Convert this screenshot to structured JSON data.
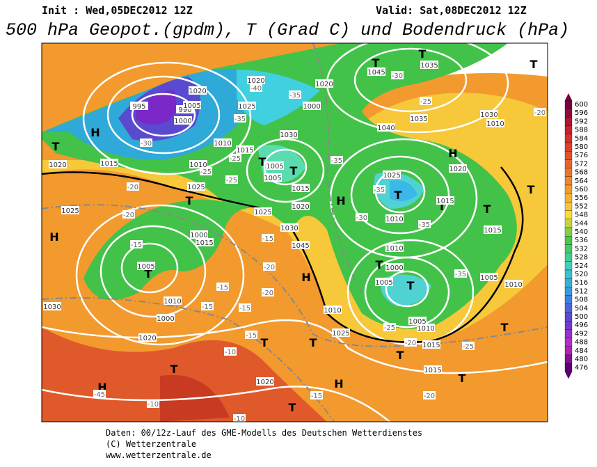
{
  "header": {
    "init": "Init : Wed,05DEC2012 12Z",
    "valid": "Valid: Sat,08DEC2012 12Z",
    "title": "500 hPa Geopot.(gpdm), T (Grad C) und Bodendruck (hPa)"
  },
  "map": {
    "labels": [
      "H",
      "H",
      "H",
      "H",
      "H",
      "H",
      "H",
      "T",
      "T",
      "T",
      "T",
      "T",
      "T",
      "T",
      "T",
      "T",
      "T",
      "T",
      "T",
      "T",
      "T",
      "T",
      "T",
      "T",
      "T",
      "T",
      "T",
      "T",
      "990",
      "995",
      "1000",
      "1005",
      "1020",
      "1025",
      "1020",
      "1010",
      "1015",
      "1030",
      "1020",
      "1000",
      "1005",
      "1005",
      "1015",
      "1020",
      "1025",
      "1030",
      "1045",
      "1045",
      "1035",
      "1040",
      "1035",
      "1030",
      "1010",
      "1025",
      "1020",
      "1015",
      "1010",
      "1015",
      "1010",
      "1000",
      "1005",
      "1005",
      "1010",
      "1015",
      "1015",
      "1010",
      "1005",
      "1010",
      "1000",
      "1005",
      "1000",
      "1015",
      "1020",
      "1020",
      "1015",
      "1010",
      "1025",
      "1025",
      "1030",
      "1010",
      "1025",
      "1020",
      "-45",
      "-40",
      "-35",
      "-35",
      "-30",
      "-25",
      "-25",
      "-25",
      "-20",
      "-20",
      "-15",
      "-15",
      "-15",
      "-15",
      "-20",
      "-20",
      "-15",
      "-15",
      "-10",
      "-10",
      "-10",
      "-15",
      "-20",
      "-20",
      "-25",
      "-25",
      "-35",
      "-35",
      "-30",
      "-35",
      "-35",
      "-30",
      "-25",
      "-20"
    ]
  },
  "colorbar": {
    "ticks": [
      600,
      596,
      592,
      588,
      584,
      580,
      576,
      572,
      568,
      564,
      560,
      556,
      552,
      548,
      544,
      540,
      536,
      532,
      528,
      524,
      520,
      516,
      512,
      508,
      504,
      500,
      496,
      492,
      488,
      484,
      480,
      476
    ]
  },
  "footer": {
    "lines": [
      "Daten: 00/12z-Lauf des GME-Modells des Deutschen Wetterdienstes",
      "(C) Wetterzentrale",
      "www.wetterzentrale.de"
    ]
  }
}
